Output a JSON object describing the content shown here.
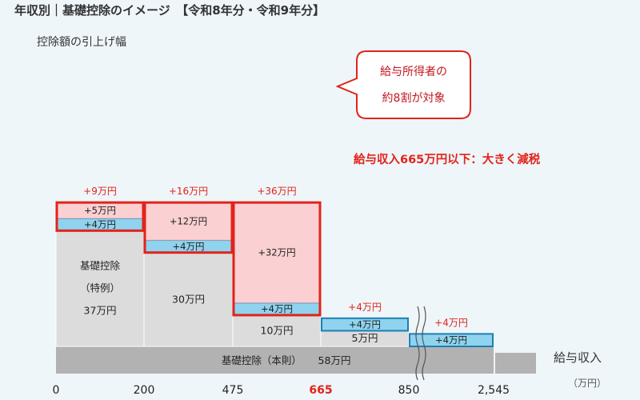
{
  "chart_data": {
    "type": "bar",
    "title": "年収別｜基礎控除のイメージ　【令和8年分・令和9年分】",
    "ylabel": "控除額の引上げ幅",
    "xlabel": "給与収入",
    "xunit": "（万円）",
    "x_ticks": [
      "0",
      "200",
      "475",
      "665",
      "850",
      "2,545"
    ],
    "highlight_tick": "665",
    "base": {
      "label": "基礎控除（本則）",
      "value_label": "58万円"
    },
    "columns": [
      {
        "gray_label_lines": [
          "基礎控除",
          "（特例）",
          "37万円"
        ],
        "gray": 37,
        "segments": [
          {
            "label": "+4万円",
            "value": 4,
            "kind": "blue"
          },
          {
            "label": "+5万円",
            "value": 5,
            "kind": "pink"
          }
        ],
        "total_label": "+9万円",
        "highlight": true
      },
      {
        "gray_label_lines": [
          "30万円"
        ],
        "gray": 30,
        "segments": [
          {
            "label": "+4万円",
            "value": 4,
            "kind": "blue"
          },
          {
            "label": "+12万円",
            "value": 12,
            "kind": "pink"
          }
        ],
        "total_label": "+16万円",
        "highlight": true
      },
      {
        "gray_label_lines": [
          "10万円"
        ],
        "gray": 10,
        "segments": [
          {
            "label": "+4万円",
            "value": 4,
            "kind": "blue"
          },
          {
            "label": "+32万円",
            "value": 32,
            "kind": "pink"
          }
        ],
        "total_label": "+36万円",
        "highlight": true
      },
      {
        "gray_label_lines": [
          "5万円"
        ],
        "gray": 5,
        "segments": [
          {
            "label": "+4万円",
            "value": 4,
            "kind": "blue"
          }
        ],
        "total_label": "+4万円",
        "highlight": false
      },
      {
        "gray_label_lines": [],
        "gray": 0,
        "segments": [
          {
            "label": "+4万円",
            "value": 4,
            "kind": "blue"
          }
        ],
        "total_label": "+4万円",
        "highlight": false
      }
    ],
    "callout": [
      "給与所得者の",
      "約8割が対象"
    ],
    "annotation": "給与収入665万円以下：大きく減税",
    "colors": {
      "gray": "#dcdcdc",
      "base": "#b2b2b2",
      "pink": "#fbd0d2",
      "blue": "#8fd3ef",
      "blue_border": "#1e7fb2",
      "red": "#e2231a",
      "background": "#eef6fa"
    }
  }
}
